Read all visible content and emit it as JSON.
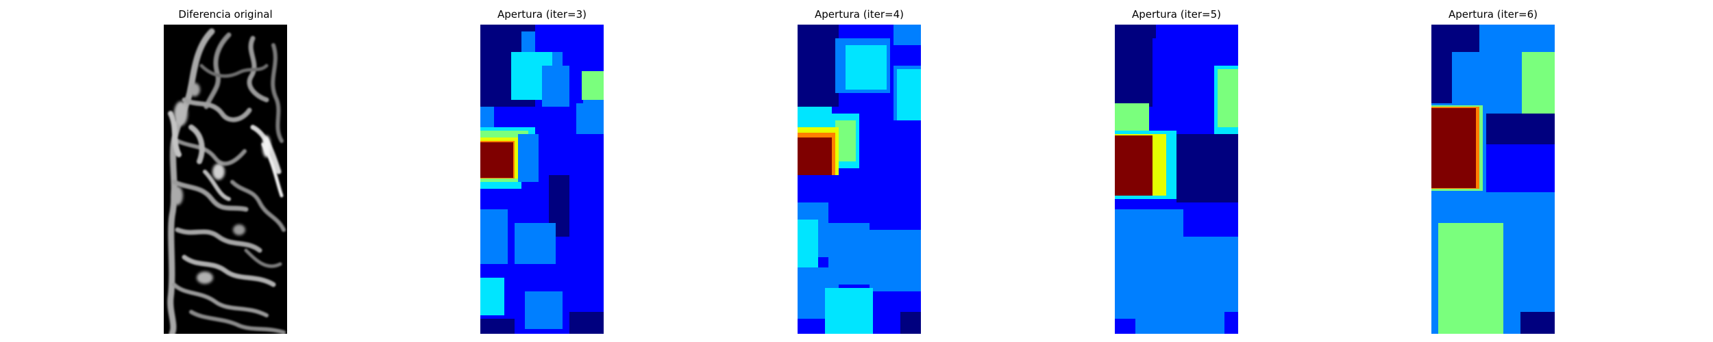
{
  "panels": [
    {
      "title": "Diferencia original",
      "kind": "grayscale"
    },
    {
      "title": "Apertura (iter=3)",
      "kind": "jet"
    },
    {
      "title": "Apertura (iter=4)",
      "kind": "jet"
    },
    {
      "title": "Apertura (iter=5)",
      "kind": "jet"
    },
    {
      "title": "Apertura (iter=6)",
      "kind": "jet"
    }
  ],
  "colormap": {
    "gray_background": "#000000",
    "jet": [
      "#00007f",
      "#0000ff",
      "#007fff",
      "#00e5ff",
      "#7aff7d",
      "#e5ff00",
      "#ff7f00",
      "#7f0000"
    ]
  }
}
